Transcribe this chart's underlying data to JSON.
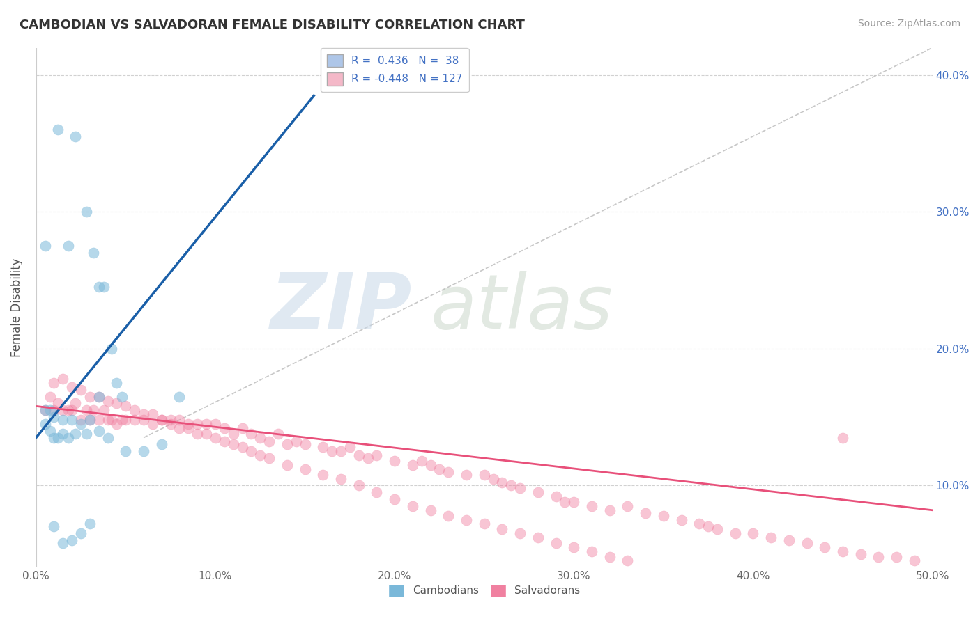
{
  "title": "CAMBODIAN VS SALVADORAN FEMALE DISABILITY CORRELATION CHART",
  "source": "Source: ZipAtlas.com",
  "ylabel": "Female Disability",
  "xlim": [
    0.0,
    0.5
  ],
  "ylim": [
    0.04,
    0.42
  ],
  "xticks": [
    0.0,
    0.1,
    0.2,
    0.3,
    0.4,
    0.5
  ],
  "yticks": [
    0.1,
    0.2,
    0.3,
    0.4
  ],
  "cambodian_color": "#7ab8d9",
  "salvadoran_color": "#f080a0",
  "blue_line_color": "#1a5fa8",
  "pink_line_color": "#e8507a",
  "gray_line_color": "#b0b0b0",
  "blue_line_x0": 0.0,
  "blue_line_y0": 0.135,
  "blue_line_x1": 0.155,
  "blue_line_y1": 0.385,
  "pink_line_x0": 0.0,
  "pink_line_y0": 0.158,
  "pink_line_x1": 0.5,
  "pink_line_y1": 0.082,
  "gray_line_x0": 0.06,
  "gray_line_y0": 0.135,
  "gray_line_x1": 0.5,
  "gray_line_y1": 0.42,
  "cambodian_x": [
    0.005,
    0.012,
    0.018,
    0.022,
    0.028,
    0.032,
    0.035,
    0.038,
    0.042,
    0.045,
    0.048,
    0.005,
    0.008,
    0.01,
    0.015,
    0.02,
    0.025,
    0.03,
    0.035,
    0.01,
    0.015,
    0.02,
    0.025,
    0.03,
    0.005,
    0.008,
    0.01,
    0.012,
    0.015,
    0.018,
    0.022,
    0.028,
    0.035,
    0.04,
    0.05,
    0.06,
    0.07,
    0.08
  ],
  "cambodian_y": [
    0.275,
    0.36,
    0.275,
    0.355,
    0.3,
    0.27,
    0.245,
    0.245,
    0.2,
    0.175,
    0.165,
    0.155,
    0.155,
    0.15,
    0.148,
    0.148,
    0.145,
    0.148,
    0.165,
    0.07,
    0.058,
    0.06,
    0.065,
    0.072,
    0.145,
    0.14,
    0.135,
    0.135,
    0.138,
    0.135,
    0.138,
    0.138,
    0.14,
    0.135,
    0.125,
    0.125,
    0.13,
    0.165
  ],
  "salvadoran_x": [
    0.005,
    0.008,
    0.01,
    0.012,
    0.015,
    0.018,
    0.02,
    0.022,
    0.025,
    0.028,
    0.03,
    0.032,
    0.035,
    0.038,
    0.04,
    0.042,
    0.045,
    0.048,
    0.05,
    0.055,
    0.06,
    0.065,
    0.07,
    0.075,
    0.08,
    0.085,
    0.09,
    0.095,
    0.1,
    0.105,
    0.11,
    0.115,
    0.12,
    0.125,
    0.13,
    0.135,
    0.14,
    0.145,
    0.15,
    0.16,
    0.165,
    0.17,
    0.175,
    0.18,
    0.185,
    0.19,
    0.2,
    0.21,
    0.215,
    0.22,
    0.225,
    0.23,
    0.24,
    0.25,
    0.255,
    0.26,
    0.265,
    0.27,
    0.28,
    0.29,
    0.295,
    0.3,
    0.31,
    0.32,
    0.33,
    0.34,
    0.35,
    0.36,
    0.37,
    0.375,
    0.38,
    0.39,
    0.4,
    0.41,
    0.42,
    0.43,
    0.44,
    0.45,
    0.46,
    0.47,
    0.48,
    0.49,
    0.01,
    0.015,
    0.02,
    0.025,
    0.03,
    0.035,
    0.04,
    0.045,
    0.05,
    0.055,
    0.06,
    0.065,
    0.07,
    0.075,
    0.08,
    0.085,
    0.09,
    0.095,
    0.1,
    0.105,
    0.11,
    0.115,
    0.12,
    0.125,
    0.13,
    0.14,
    0.15,
    0.16,
    0.17,
    0.18,
    0.19,
    0.2,
    0.21,
    0.22,
    0.23,
    0.24,
    0.25,
    0.26,
    0.27,
    0.28,
    0.29,
    0.3,
    0.31,
    0.32,
    0.33,
    0.45
  ],
  "salvadoran_y": [
    0.155,
    0.165,
    0.155,
    0.16,
    0.155,
    0.155,
    0.155,
    0.16,
    0.148,
    0.155,
    0.148,
    0.155,
    0.148,
    0.155,
    0.148,
    0.148,
    0.145,
    0.148,
    0.148,
    0.148,
    0.148,
    0.145,
    0.148,
    0.145,
    0.148,
    0.145,
    0.145,
    0.145,
    0.145,
    0.142,
    0.138,
    0.142,
    0.138,
    0.135,
    0.132,
    0.138,
    0.13,
    0.132,
    0.13,
    0.128,
    0.125,
    0.125,
    0.128,
    0.122,
    0.12,
    0.122,
    0.118,
    0.115,
    0.118,
    0.115,
    0.112,
    0.11,
    0.108,
    0.108,
    0.105,
    0.102,
    0.1,
    0.098,
    0.095,
    0.092,
    0.088,
    0.088,
    0.085,
    0.082,
    0.085,
    0.08,
    0.078,
    0.075,
    0.072,
    0.07,
    0.068,
    0.065,
    0.065,
    0.062,
    0.06,
    0.058,
    0.055,
    0.052,
    0.05,
    0.048,
    0.048,
    0.045,
    0.175,
    0.178,
    0.172,
    0.17,
    0.165,
    0.165,
    0.162,
    0.16,
    0.158,
    0.155,
    0.152,
    0.152,
    0.148,
    0.148,
    0.142,
    0.142,
    0.138,
    0.138,
    0.135,
    0.132,
    0.13,
    0.128,
    0.125,
    0.122,
    0.12,
    0.115,
    0.112,
    0.108,
    0.105,
    0.1,
    0.095,
    0.09,
    0.085,
    0.082,
    0.078,
    0.075,
    0.072,
    0.068,
    0.065,
    0.062,
    0.058,
    0.055,
    0.052,
    0.048,
    0.045,
    0.135
  ]
}
